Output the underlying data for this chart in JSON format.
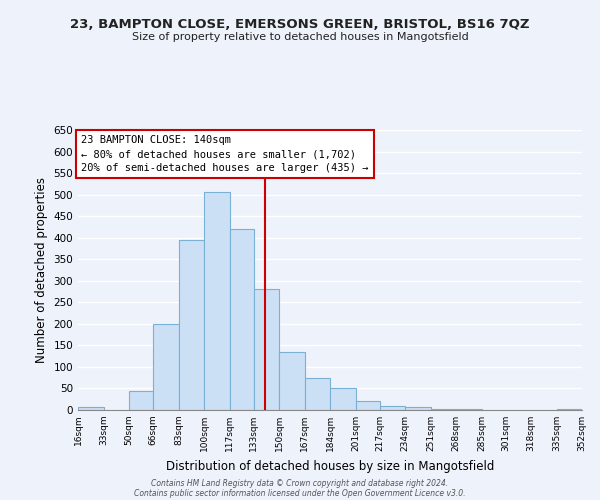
{
  "title1": "23, BAMPTON CLOSE, EMERSONS GREEN, BRISTOL, BS16 7QZ",
  "title2": "Size of property relative to detached houses in Mangotsfield",
  "xlabel": "Distribution of detached houses by size in Mangotsfield",
  "ylabel": "Number of detached properties",
  "bar_labels": [
    "16sqm",
    "33sqm",
    "50sqm",
    "66sqm",
    "83sqm",
    "100sqm",
    "117sqm",
    "133sqm",
    "150sqm",
    "167sqm",
    "184sqm",
    "201sqm",
    "217sqm",
    "234sqm",
    "251sqm",
    "268sqm",
    "285sqm",
    "301sqm",
    "318sqm",
    "335sqm",
    "352sqm"
  ],
  "bar_values": [
    8,
    0,
    45,
    200,
    395,
    505,
    420,
    280,
    135,
    75,
    50,
    22,
    10,
    8,
    2,
    2,
    0,
    0,
    0,
    2,
    0
  ],
  "bar_color": "#cce0f5",
  "bar_edge_color": "#7ab0d4",
  "vline_x_bin": 8,
  "vline_color": "#cc0000",
  "bin_edges": [
    16,
    33,
    50,
    66,
    83,
    100,
    117,
    133,
    150,
    167,
    184,
    201,
    217,
    234,
    251,
    268,
    285,
    301,
    318,
    335,
    352
  ],
  "ylim": [
    0,
    650
  ],
  "yticks": [
    0,
    50,
    100,
    150,
    200,
    250,
    300,
    350,
    400,
    450,
    500,
    550,
    600,
    650
  ],
  "annotation_title": "23 BAMPTON CLOSE: 140sqm",
  "annotation_line1": "← 80% of detached houses are smaller (1,702)",
  "annotation_line2": "20% of semi-detached houses are larger (435) →",
  "annotation_box_color": "#ffffff",
  "annotation_box_edge": "#cc0000",
  "footer1": "Contains HM Land Registry data © Crown copyright and database right 2024.",
  "footer2": "Contains public sector information licensed under the Open Government Licence v3.0.",
  "bg_color": "#eef2fa",
  "grid_color": "#ffffff"
}
